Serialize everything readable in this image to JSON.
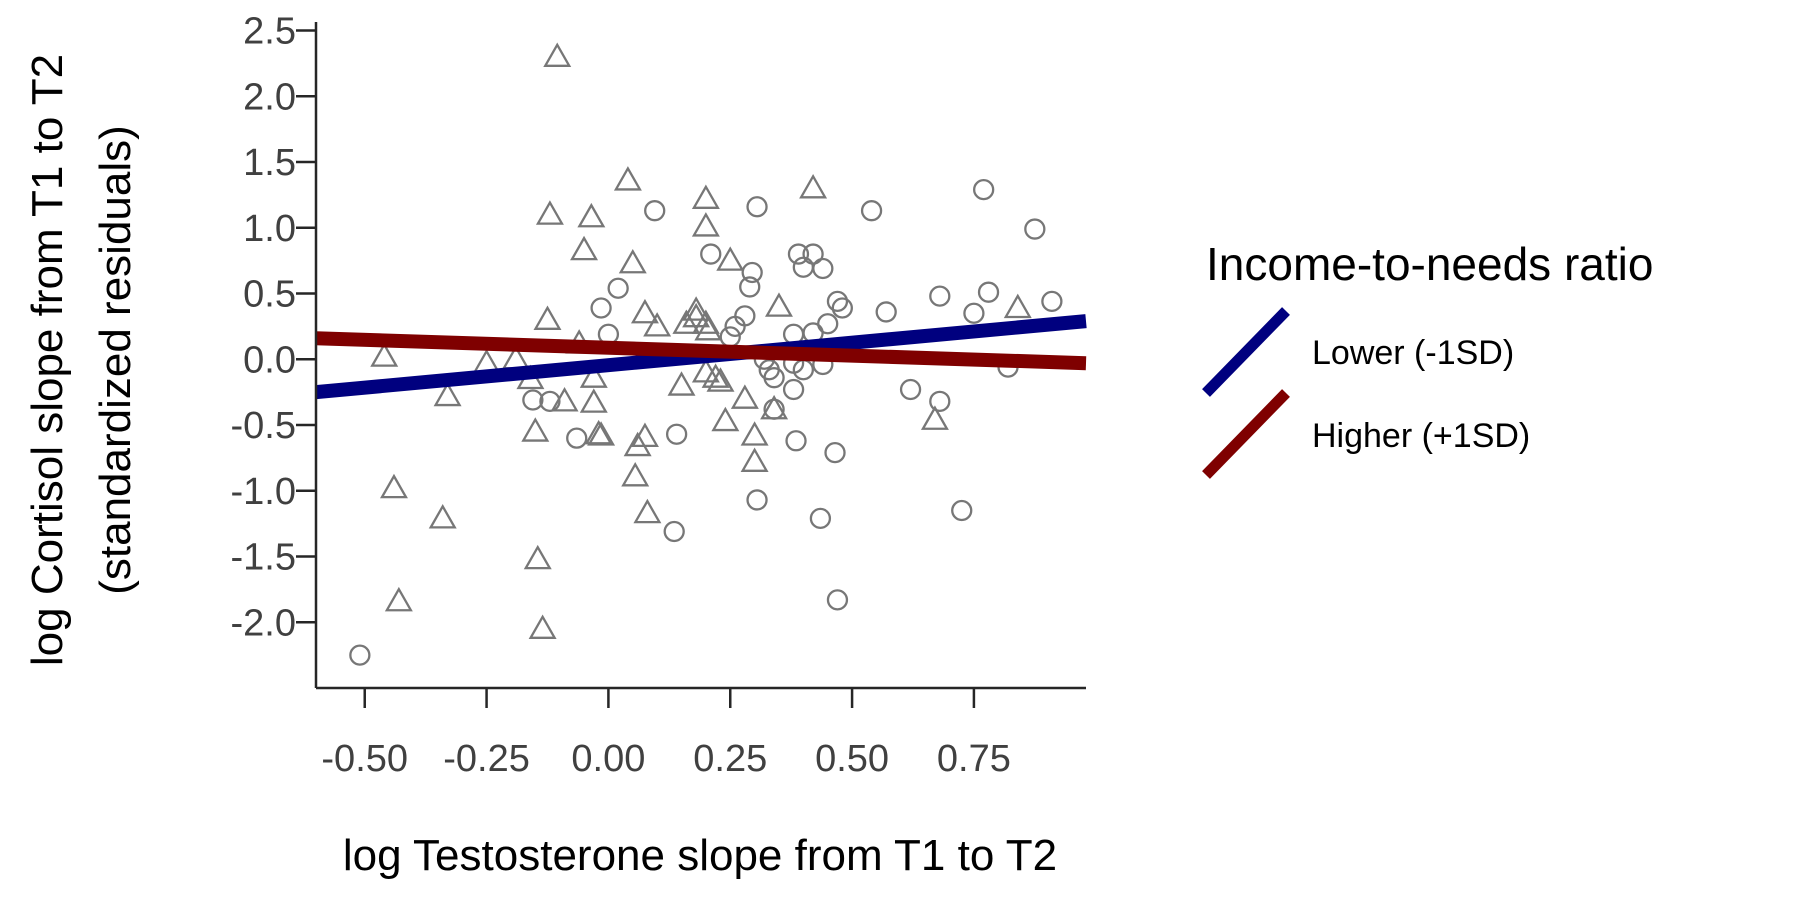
{
  "chart_data": {
    "type": "scatter",
    "title": "",
    "xlabel": "log Testosterone slope from T1 to T2",
    "ylabel_line1": "log Cortisol slope from T1 to T2",
    "ylabel_line2": "(standardized residuals)",
    "xlim": [
      -0.6,
      0.98
    ],
    "ylim": [
      -2.5,
      2.58
    ],
    "xticks": [
      -0.5,
      -0.25,
      0.0,
      0.25,
      0.5,
      0.75
    ],
    "xtick_labels": [
      "-0.50",
      "-0.25",
      "0.00",
      "0.25",
      "0.50",
      "0.75"
    ],
    "yticks": [
      -2.0,
      -1.5,
      -1.0,
      -0.5,
      0.0,
      0.5,
      1.0,
      1.5,
      2.0,
      2.5
    ],
    "ytick_labels": [
      "-2.0",
      "-1.5",
      "-1.0",
      "-0.5",
      "0.0",
      "0.5",
      "1.0",
      "1.5",
      "2.0",
      "2.5"
    ],
    "grid": false,
    "legend": {
      "title": "Income-to-needs ratio",
      "placement": "right",
      "entries": [
        {
          "label": "Lower (-1SD)",
          "color": "#00007f"
        },
        {
          "label": "Higher (+1SD)",
          "color": "#7f0000"
        }
      ]
    },
    "marker_color": "#777777",
    "series": [
      {
        "name": "Lower (-1SD)",
        "marker": "triangle",
        "line_color": "#00007f",
        "fit_line": {
          "x": [
            -0.6,
            0.98
          ],
          "y": [
            -0.25,
            0.29
          ]
        },
        "points": [
          [
            -0.105,
            2.3
          ],
          [
            0.04,
            1.36
          ],
          [
            0.2,
            1.22
          ],
          [
            0.42,
            1.3
          ],
          [
            -0.12,
            1.1
          ],
          [
            -0.035,
            1.08
          ],
          [
            0.2,
            1.01
          ],
          [
            -0.05,
            0.83
          ],
          [
            0.05,
            0.73
          ],
          [
            0.25,
            0.75
          ],
          [
            0.35,
            0.4
          ],
          [
            0.075,
            0.35
          ],
          [
            0.1,
            0.25
          ],
          [
            0.18,
            0.37
          ],
          [
            0.18,
            0.32
          ],
          [
            0.16,
            0.27
          ],
          [
            0.2,
            0.27
          ],
          [
            0.205,
            0.22
          ],
          [
            0.84,
            0.39
          ],
          [
            -0.125,
            0.3
          ],
          [
            -0.06,
            0.12
          ],
          [
            -0.46,
            0.02
          ],
          [
            -0.25,
            -0.03
          ],
          [
            -0.19,
            0.0
          ],
          [
            -0.16,
            -0.15
          ],
          [
            -0.33,
            -0.28
          ],
          [
            0.2,
            -0.1
          ],
          [
            0.22,
            -0.14
          ],
          [
            -0.03,
            -0.14
          ],
          [
            0.15,
            -0.2
          ],
          [
            0.23,
            -0.17
          ],
          [
            0.28,
            -0.3
          ],
          [
            -0.09,
            -0.32
          ],
          [
            -0.03,
            -0.33
          ],
          [
            -0.15,
            -0.55
          ],
          [
            0.24,
            -0.47
          ],
          [
            0.34,
            -0.38
          ],
          [
            0.67,
            -0.46
          ],
          [
            -0.02,
            -0.57
          ],
          [
            -0.015,
            -0.58
          ],
          [
            0.06,
            -0.66
          ],
          [
            0.075,
            -0.59
          ],
          [
            0.3,
            -0.58
          ],
          [
            0.3,
            -0.78
          ],
          [
            0.055,
            -0.89
          ],
          [
            -0.44,
            -0.98
          ],
          [
            0.08,
            -1.17
          ],
          [
            -0.34,
            -1.21
          ],
          [
            -0.145,
            -1.52
          ],
          [
            -0.43,
            -1.84
          ],
          [
            -0.135,
            -2.05
          ]
        ]
      },
      {
        "name": "Higher (+1SD)",
        "marker": "circle",
        "line_color": "#7f0000",
        "fit_line": {
          "x": [
            -0.6,
            0.98
          ],
          "y": [
            0.16,
            -0.03
          ]
        },
        "points": [
          [
            0.77,
            1.29
          ],
          [
            0.54,
            1.13
          ],
          [
            0.095,
            1.13
          ],
          [
            0.305,
            1.16
          ],
          [
            0.875,
            0.99
          ],
          [
            0.21,
            0.8
          ],
          [
            0.39,
            0.8
          ],
          [
            0.42,
            0.8
          ],
          [
            0.295,
            0.66
          ],
          [
            0.4,
            0.7
          ],
          [
            0.44,
            0.69
          ],
          [
            0.02,
            0.54
          ],
          [
            0.29,
            0.55
          ],
          [
            0.91,
            0.44
          ],
          [
            0.68,
            0.48
          ],
          [
            0.78,
            0.51
          ],
          [
            0.47,
            0.44
          ],
          [
            0.48,
            0.39
          ],
          [
            -0.015,
            0.39
          ],
          [
            0.57,
            0.36
          ],
          [
            0.75,
            0.35
          ],
          [
            0.28,
            0.33
          ],
          [
            0.26,
            0.25
          ],
          [
            0.45,
            0.27
          ],
          [
            0.42,
            0.2
          ],
          [
            0.38,
            0.19
          ],
          [
            0.0,
            0.19
          ],
          [
            0.25,
            0.17
          ],
          [
            0.32,
            0.0
          ],
          [
            0.33,
            -0.08
          ],
          [
            0.38,
            -0.03
          ],
          [
            0.4,
            -0.08
          ],
          [
            0.44,
            -0.04
          ],
          [
            0.82,
            -0.06
          ],
          [
            0.34,
            -0.14
          ],
          [
            0.38,
            -0.23
          ],
          [
            0.62,
            -0.23
          ],
          [
            0.68,
            -0.32
          ],
          [
            -0.155,
            -0.31
          ],
          [
            -0.12,
            -0.32
          ],
          [
            -0.065,
            -0.6
          ],
          [
            0.14,
            -0.57
          ],
          [
            0.34,
            -0.38
          ],
          [
            0.385,
            -0.62
          ],
          [
            0.465,
            -0.71
          ],
          [
            0.305,
            -1.07
          ],
          [
            0.725,
            -1.15
          ],
          [
            0.435,
            -1.21
          ],
          [
            0.135,
            -1.31
          ],
          [
            0.47,
            -1.83
          ],
          [
            -0.51,
            -2.25
          ]
        ]
      }
    ]
  }
}
